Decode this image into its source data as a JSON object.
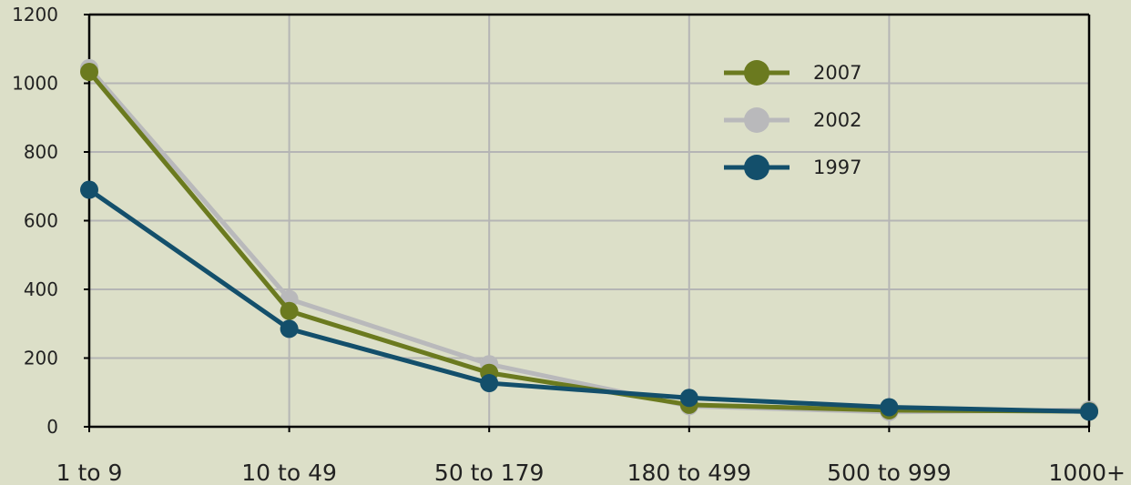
{
  "chart_data": {
    "type": "line",
    "title": "",
    "xlabel": "",
    "ylabel": "",
    "categories": [
      "1 to 9",
      "10 to 49",
      "50 to 179",
      "180 to 499",
      "500 to 999",
      "1000+"
    ],
    "ylim": [
      0,
      1200
    ],
    "yticks": [
      0,
      200,
      400,
      600,
      800,
      1000,
      1200
    ],
    "grid": true,
    "legend_position": "top-right",
    "series": [
      {
        "name": "2007",
        "color": "#6b7a1f",
        "values": [
          1033,
          337,
          157,
          64,
          48,
          45
        ]
      },
      {
        "name": "2002",
        "color": "#b9b9bb",
        "values": [
          1044,
          372,
          182,
          60,
          43,
          49
        ]
      },
      {
        "name": "1997",
        "color": "#134f6b",
        "values": [
          690,
          285,
          127,
          84,
          57,
          44
        ]
      }
    ]
  }
}
